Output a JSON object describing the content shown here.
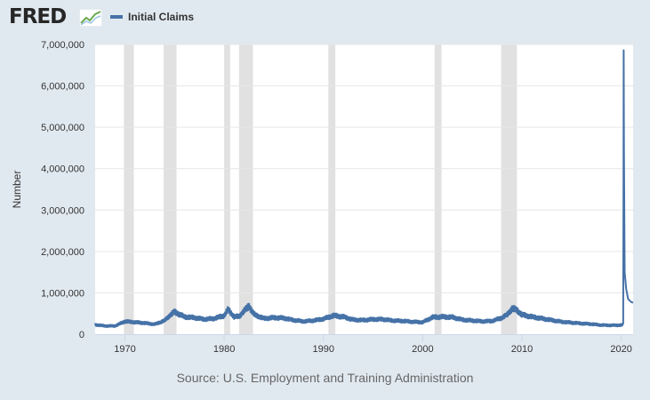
{
  "brand": {
    "logo_text": "FRED"
  },
  "colors": {
    "series": "#4572a7",
    "recession": "#e1e1e1",
    "background": "#e1e9f0",
    "plot": "#ffffff"
  },
  "source_text": "Source: U.S. Employment and Training Administration",
  "chart_data": {
    "type": "line",
    "title": "",
    "xlabel": "",
    "ylabel": "Number",
    "xlim": [
      1967,
      2021.2
    ],
    "ylim": [
      0,
      7000000
    ],
    "grid": true,
    "legend": "top-left",
    "x_ticks": [
      "1970",
      "1980",
      "1990",
      "2000",
      "2010",
      "2020"
    ],
    "y_ticks": [
      "0",
      "1,000,000",
      "2,000,000",
      "3,000,000",
      "4,000,000",
      "5,000,000",
      "6,000,000",
      "7,000,000"
    ],
    "recessions": [
      [
        1969.9,
        1970.9
      ],
      [
        1973.9,
        1975.2
      ],
      [
        1980.0,
        1980.6
      ],
      [
        1981.5,
        1982.9
      ],
      [
        1990.5,
        1991.2
      ],
      [
        2001.2,
        2001.9
      ],
      [
        2007.9,
        2009.5
      ]
    ],
    "series": [
      {
        "name": "Initial Claims",
        "x": [
          1967,
          1968,
          1969,
          1970,
          1971,
          1972,
          1973,
          1974,
          1974.5,
          1975,
          1975.5,
          1976,
          1977,
          1978,
          1979,
          1980,
          1980.4,
          1981,
          1981.5,
          1982,
          1982.5,
          1983,
          1984,
          1985,
          1986,
          1987,
          1988,
          1989,
          1990,
          1991,
          1992,
          1993,
          1994,
          1995,
          1996,
          1997,
          1998,
          1999,
          2000,
          2001,
          2002,
          2003,
          2004,
          2005,
          2006,
          2007,
          2008,
          2008.5,
          2009,
          2009.5,
          2010,
          2011,
          2012,
          2013,
          2014,
          2015,
          2016,
          2017,
          2018,
          2019,
          2020.1,
          2020.2,
          2020.23,
          2020.25,
          2020.28,
          2020.35,
          2020.5,
          2020.7,
          2021.0,
          2021.2
        ],
        "values": [
          230000,
          200000,
          200000,
          310000,
          290000,
          270000,
          240000,
          330000,
          450000,
          540000,
          480000,
          420000,
          400000,
          360000,
          380000,
          450000,
          600000,
          420000,
          430000,
          560000,
          680000,
          480000,
          380000,
          400000,
          390000,
          340000,
          310000,
          330000,
          370000,
          450000,
          420000,
          350000,
          340000,
          360000,
          360000,
          330000,
          320000,
          300000,
          290000,
          410000,
          420000,
          410000,
          350000,
          330000,
          310000,
          320000,
          400000,
          470000,
          620000,
          580000,
          470000,
          420000,
          380000,
          340000,
          300000,
          280000,
          260000,
          245000,
          220000,
          215000,
          220000,
          250000,
          3300000,
          6860000,
          4400000,
          1500000,
          1100000,
          850000,
          780000,
          760000
        ]
      }
    ]
  }
}
